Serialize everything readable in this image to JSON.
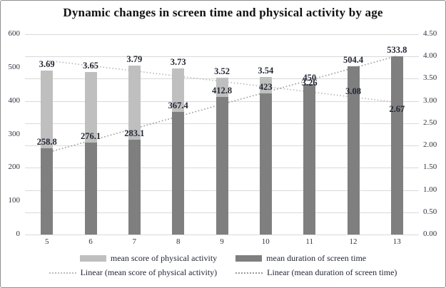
{
  "chart_data": {
    "type": "bar",
    "title": "Dynamic changes in screen time and physical activity by age",
    "categories": [
      "5",
      "6",
      "7",
      "8",
      "9",
      "10",
      "11",
      "12",
      "13"
    ],
    "series": [
      {
        "name": "mean score of physical activity",
        "axis": "right",
        "color": "#bfbfbf",
        "values": [
          3.69,
          3.65,
          3.79,
          3.73,
          3.52,
          3.54,
          3.26,
          3.08,
          2.67
        ],
        "labels": [
          "3.69",
          "3.65",
          "3.79",
          "3.73",
          "3.52",
          "3.54",
          "3.26",
          "3.08",
          "2.67"
        ]
      },
      {
        "name": "mean duration of screen time",
        "axis": "left",
        "color": "#7f7f7f",
        "values": [
          258.8,
          276.1,
          283.1,
          367.4,
          412.8,
          423,
          450,
          504.4,
          533.8
        ],
        "labels": [
          "258.8",
          "276.1",
          "283.1",
          "367.4",
          "412.8",
          "423",
          "450",
          "504.4",
          "533.8"
        ]
      }
    ],
    "trendlines": [
      {
        "name": "Linear (mean score of physical activity)",
        "axis": "right",
        "start": 3.91,
        "end": 2.97,
        "color": "#bbbbbb"
      },
      {
        "name": "Linear (mean duration of screen time)",
        "axis": "left",
        "start": 245,
        "end": 535,
        "color": "#9a9a9a"
      }
    ],
    "axes": {
      "left": {
        "min": 0,
        "max": 600,
        "ticks_top_to_bottom": [
          "600",
          "500",
          "400",
          "300",
          "200",
          "100",
          "0"
        ]
      },
      "right": {
        "min": 0,
        "max": 4.5,
        "ticks_top_to_bottom": [
          "4.50",
          "4.00",
          "3.50",
          "3.00",
          "2.50",
          "2.00",
          "1.50",
          "1.00",
          "0.50",
          "0.00"
        ]
      }
    },
    "grid": {
      "horizontal_lines": 10,
      "color": "#d9d9d9"
    },
    "legend": {
      "row1": [
        {
          "swatch": "bar",
          "color": "#bfbfbf",
          "label": "mean score of physical activity"
        },
        {
          "swatch": "bar",
          "color": "#7f7f7f",
          "label": "mean duration of screen time"
        }
      ],
      "row2": [
        {
          "swatch": "dotted",
          "color": "#bbbbbb",
          "label": "Linear (mean score of physical activity)"
        },
        {
          "swatch": "dotted",
          "color": "#9a9a9a",
          "label": "Linear (mean duration of screen time)"
        }
      ]
    }
  }
}
